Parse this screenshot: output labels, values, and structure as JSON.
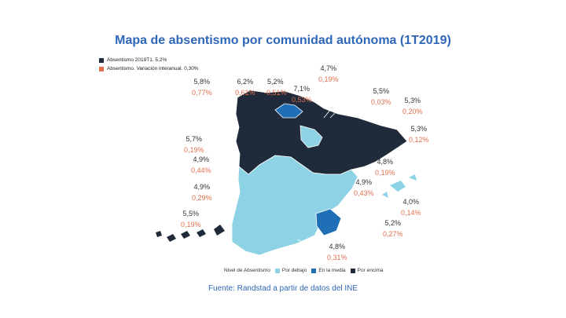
{
  "title": "Mapa de absentismo por comunidad autónoma (1T2019)",
  "legend_top": [
    {
      "label": "Absentismo 2019T1. 5,2%",
      "color": "#1f2a3a"
    },
    {
      "label": "Absentismo. Variación interanual. 0,30%",
      "color": "#e0704e"
    }
  ],
  "legend_bottom": {
    "title": "Nivel de Absentismo",
    "items": [
      {
        "label": "Por debajo",
        "color": "#8dd3e5"
      },
      {
        "label": "En la media",
        "color": "#1e6fb5"
      },
      {
        "label": "Por encima",
        "color": "#1f2a3a"
      }
    ]
  },
  "regions": [
    {
      "absent": "5,8%",
      "var": "0,77%"
    },
    {
      "absent": "6,2%",
      "var": "0,61%"
    },
    {
      "absent": "5,2%",
      "var": "-0,51%"
    },
    {
      "absent": "7,1%",
      "var": "0,53%"
    },
    {
      "absent": "4,7%",
      "var": "0,19%"
    },
    {
      "absent": "5,5%",
      "var": "0,03%"
    },
    {
      "absent": "5,3%",
      "var": "0,20%"
    },
    {
      "absent": "5,3%",
      "var": "0,12%"
    },
    {
      "absent": "5,7%",
      "var": "0,19%"
    },
    {
      "absent": "4,9%",
      "var": "0,44%"
    },
    {
      "absent": "4,8%",
      "var": "0,19%"
    },
    {
      "absent": "4,9%",
      "var": "0,43%"
    },
    {
      "absent": "4,9%",
      "var": "0,29%"
    },
    {
      "absent": "4,0%",
      "var": "0,14%"
    },
    {
      "absent": "5,5%",
      "var": "0,19%"
    },
    {
      "absent": "5,2%",
      "var": "0,27%"
    },
    {
      "absent": "4,8%",
      "var": "0,31%"
    }
  ],
  "colors": {
    "above": "#1f2a3a",
    "media": "#1e6fb5",
    "below": "#8dd3e5",
    "title": "#2e66b8",
    "variation": "#e0704e"
  },
  "source": "Fuente: Randstad a partir de datos del INE"
}
